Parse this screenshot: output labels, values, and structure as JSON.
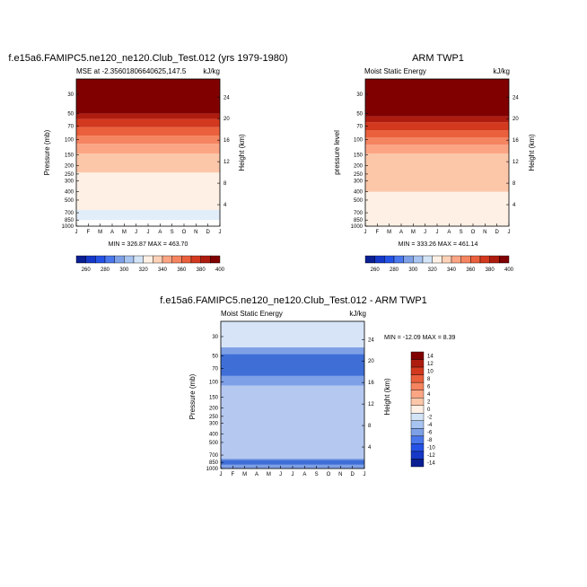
{
  "chart_data": [
    {
      "type": "heatmap",
      "title": "f.e15a6.FAMIPC5.ne120_ne120.Club_Test.012 (yrs 1979-1980)",
      "left_label": "MSE at -2.35601806640625,147.5",
      "right_label": "kJ/kg",
      "ylabel": "Pressure (mb)",
      "ylabel_right": "Height (km)",
      "x_ticks": [
        "J",
        "F",
        "M",
        "A",
        "M",
        "J",
        "J",
        "A",
        "S",
        "O",
        "N",
        "D",
        "J"
      ],
      "y_ticks": [
        "30",
        "50",
        "70",
        "100",
        "150",
        "200",
        "250",
        "300",
        "400",
        "500",
        "700",
        "850",
        "1000"
      ],
      "y_ticks_right": [
        "24",
        "20",
        "16",
        "12",
        "8",
        "4"
      ],
      "stats": "MIN = 326.87 MAX = 463.70",
      "contour_levels": [
        "260",
        "280",
        "300",
        "320",
        "340",
        "360",
        "380",
        "400"
      ],
      "zones": [
        {
          "color": "#e1eefa",
          "p_bottom": 850,
          "p_top": 650
        },
        {
          "color": "#fef0e4",
          "p_bottom": 650,
          "p_top": 240
        },
        {
          "color": "#fcc7a9",
          "p_bottom": 240,
          "p_top": 145
        },
        {
          "color": "#fba585",
          "p_bottom": 145,
          "p_top": 112
        },
        {
          "color": "#f58460",
          "p_bottom": 112,
          "p_top": 90
        },
        {
          "color": "#ea603c",
          "p_bottom": 90,
          "p_top": 72
        },
        {
          "color": "#d2391f",
          "p_bottom": 72,
          "p_top": 58
        },
        {
          "color": "#ae1c10",
          "p_bottom": 58,
          "p_top": 50
        },
        {
          "color": "#800000",
          "p_bottom": 50,
          "p_top": 20
        }
      ]
    },
    {
      "type": "heatmap",
      "title": "ARM TWP1",
      "left_label": "Moist Static Energy",
      "right_label": "kJ/kg",
      "ylabel": "pressure level",
      "ylabel_right": "Height (km)",
      "x_ticks": [
        "J",
        "F",
        "M",
        "A",
        "M",
        "J",
        "J",
        "A",
        "S",
        "O",
        "N",
        "D",
        "J"
      ],
      "y_ticks": [
        "30",
        "50",
        "70",
        "100",
        "150",
        "200",
        "250",
        "300",
        "400",
        "500",
        "700",
        "850",
        "1000"
      ],
      "y_ticks_right": [
        "24",
        "20",
        "16",
        "12",
        "8",
        "4"
      ],
      "stats": "MIN = 333.26 MAX = 461.14",
      "contour_levels": [
        "260",
        "280",
        "300",
        "320",
        "340",
        "360",
        "380",
        "400"
      ],
      "zones": [
        {
          "color": "#fef0e4",
          "p_bottom": 1000,
          "p_top": 400
        },
        {
          "color": "#fcc7a9",
          "p_bottom": 400,
          "p_top": 145
        },
        {
          "color": "#fba585",
          "p_bottom": 145,
          "p_top": 115
        },
        {
          "color": "#f58460",
          "p_bottom": 115,
          "p_top": 95
        },
        {
          "color": "#ea603c",
          "p_bottom": 95,
          "p_top": 78
        },
        {
          "color": "#d2391f",
          "p_bottom": 78,
          "p_top": 63
        },
        {
          "color": "#ae1c10",
          "p_bottom": 63,
          "p_top": 54
        },
        {
          "color": "#800000",
          "p_bottom": 54,
          "p_top": 20
        }
      ]
    },
    {
      "type": "heatmap",
      "title": "f.e15a6.FAMIPC5.ne120_ne120.Club_Test.012 - ARM TWP1",
      "left_label": "Moist Static Energy",
      "right_label": "kJ/kg",
      "ylabel": "Pressure (mb)",
      "ylabel_right": "Height (km)",
      "x_ticks": [
        "J",
        "F",
        "M",
        "A",
        "M",
        "J",
        "J",
        "A",
        "S",
        "O",
        "N",
        "D",
        "J"
      ],
      "y_ticks": [
        "30",
        "50",
        "70",
        "100",
        "150",
        "200",
        "250",
        "300",
        "400",
        "500",
        "700",
        "850",
        "1000"
      ],
      "y_ticks_right": [
        "24",
        "20",
        "16",
        "12",
        "8",
        "4"
      ],
      "stats": "MIN = -12.09 MAX =  8.39",
      "contour_levels": [
        "14",
        "12",
        "10",
        "8",
        "6",
        "4",
        "2",
        "0",
        "-2",
        "-4",
        "-6",
        "-8",
        "-10",
        "-12",
        "-14"
      ],
      "zones": [
        {
          "color": "#b5c8f0",
          "p_bottom": 1000,
          "p_top": 20
        },
        {
          "color": "#d7e4f8",
          "p_bottom": 40,
          "p_top": 20
        },
        {
          "color": "#7ea0e6",
          "p_bottom": 110,
          "p_top": 40
        },
        {
          "color": "#3f6ed6",
          "p_bottom": 85,
          "p_top": 48
        },
        {
          "color": "#7ea0e6",
          "p_bottom": 1000,
          "p_top": 770
        },
        {
          "color": "#3f6ed6",
          "p_bottom": 900,
          "p_top": 800
        }
      ]
    }
  ],
  "colorbars": {
    "horizontal": {
      "colors": [
        "#0a1f92",
        "#1538c8",
        "#2552e6",
        "#4a77ec",
        "#7ea0e6",
        "#a8c4f0",
        "#d4e4f7",
        "#fef0e4",
        "#fcd1b8",
        "#fba585",
        "#f58460",
        "#ea603c",
        "#d2391f",
        "#ae1c10",
        "#800000"
      ],
      "labels": [
        "260",
        "280",
        "300",
        "320",
        "340",
        "360",
        "380",
        "400"
      ]
    },
    "vertical": {
      "colors": [
        "#800000",
        "#ae1c10",
        "#d2391f",
        "#ea603c",
        "#f58460",
        "#fba585",
        "#fcc7a9",
        "#fef0e4",
        "#d4e4f7",
        "#a8c4f0",
        "#7ea0e6",
        "#4a77ec",
        "#2552e6",
        "#1538c8",
        "#0a1f92"
      ],
      "labels": [
        "14",
        "12",
        "10",
        "8",
        "6",
        "4",
        "2",
        "0",
        "-2",
        "-4",
        "-6",
        "-8",
        "-10",
        "-12",
        "-14"
      ]
    }
  }
}
